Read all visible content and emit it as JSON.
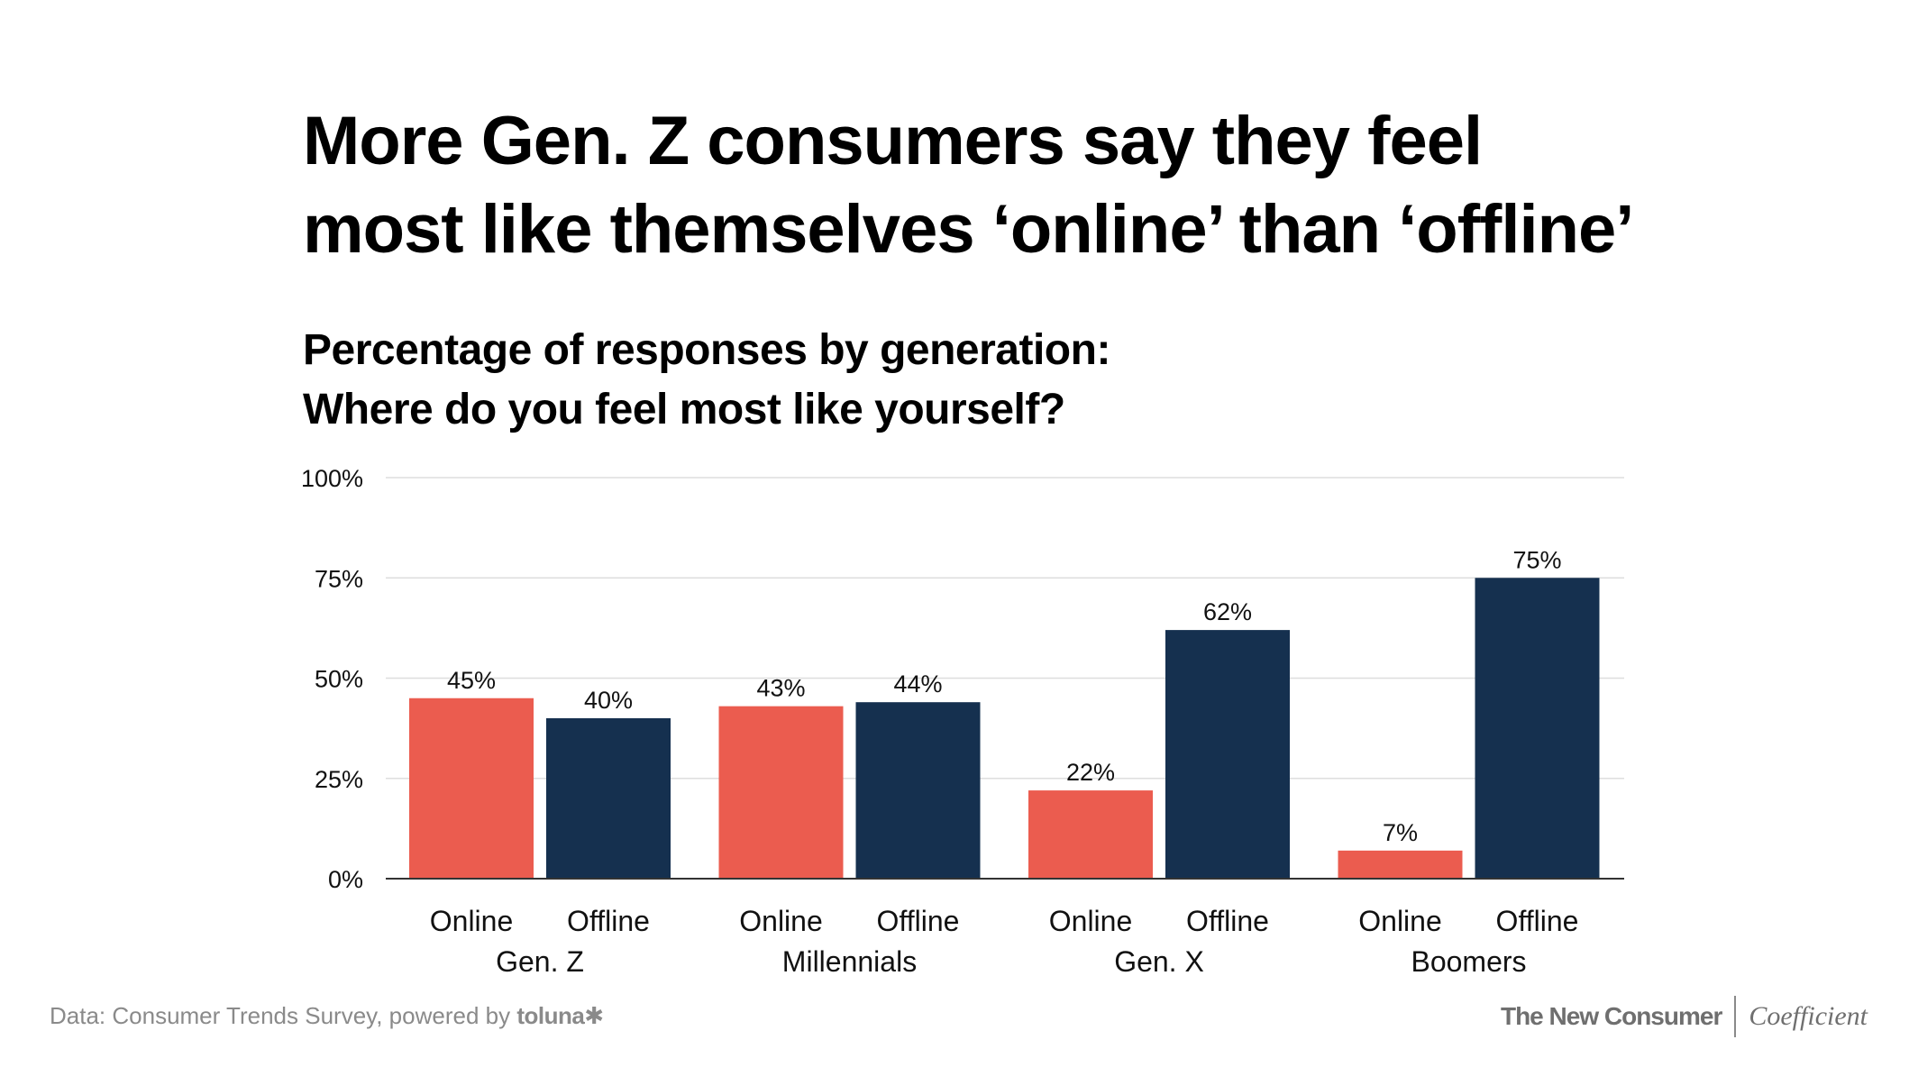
{
  "chart_data": {
    "type": "bar",
    "title": [
      "More Gen. Z consumers say they feel",
      "most like themselves ‘online’ than ‘offline’"
    ],
    "subtitle": [
      "Percentage of responses by generation:",
      "Where do you feel most like yourself?"
    ],
    "groups": [
      "Gen. Z",
      "Millennials",
      "Gen. X",
      "Boomers"
    ],
    "series": [
      {
        "name": "Online",
        "color": "#EB5C4F",
        "values": [
          45,
          43,
          22,
          7
        ]
      },
      {
        "name": "Offline",
        "color": "#15304F",
        "values": [
          40,
          44,
          62,
          75
        ]
      }
    ],
    "value_suffix": "%",
    "ylim": [
      0,
      100
    ],
    "yticks": [
      0,
      25,
      50,
      75,
      100
    ],
    "ytick_labels": [
      "0%",
      "25%",
      "50%",
      "75%",
      "100%"
    ],
    "grid": true,
    "legend": "none"
  },
  "footer": {
    "source_prefix": "Data: Consumer Trends Survey, powered by ",
    "source_brand": "toluna✱",
    "logo_left": "The New Consumer",
    "logo_right": "Coefficient"
  }
}
